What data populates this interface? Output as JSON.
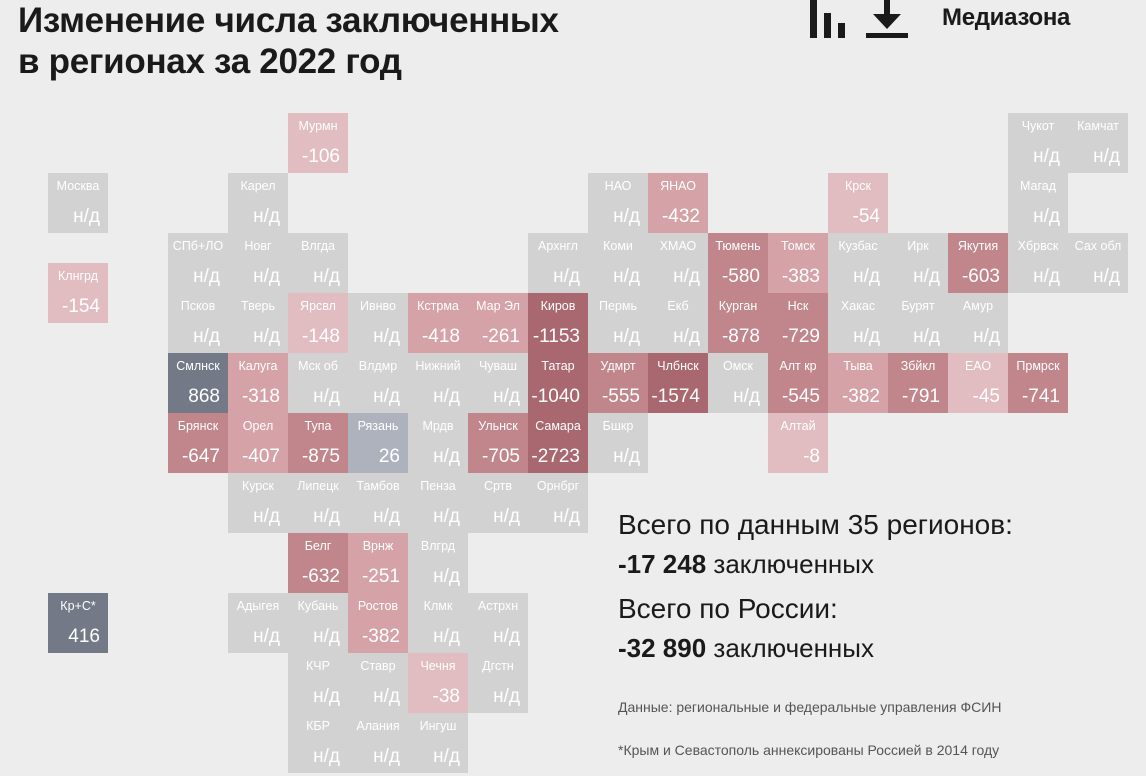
{
  "header": {
    "title_line1": "Изменение числа заключенных",
    "title_line2": "в регионах за 2022 год",
    "brand": "Медиазона"
  },
  "icons": {
    "chart": "bar-chart-icon",
    "download": "download-icon"
  },
  "colors": {
    "na": "#d2d2d2",
    "neg_light": "#e1bcc0",
    "neg_mid": "#d5a2a7",
    "neg_dark": "#c0868c",
    "neg_darkest": "#a9686f",
    "pos_light": "#aeb2bd",
    "pos_dark": "#737987"
  },
  "chart_data": {
    "type": "tile-map",
    "title": "Изменение числа заключенных в регионах за 2022 год",
    "columns": 18,
    "rows": 11,
    "tiles": [
      {
        "abbr": "Мурмн",
        "value": "-106",
        "col": 4,
        "row": 0
      },
      {
        "abbr": "Чукот",
        "value": "н/д",
        "col": 16,
        "row": 0
      },
      {
        "abbr": "Камчат",
        "value": "н/д",
        "col": 17,
        "row": 0
      },
      {
        "abbr": "Москва",
        "value": "н/д",
        "col": 0,
        "row": 1
      },
      {
        "abbr": "Карел",
        "value": "н/д",
        "col": 3,
        "row": 1
      },
      {
        "abbr": "НАО",
        "value": "н/д",
        "col": 9,
        "row": 1
      },
      {
        "abbr": "ЯНАО",
        "value": "-432",
        "col": 10,
        "row": 1
      },
      {
        "abbr": "Крск",
        "value": "-54",
        "col": 13,
        "row": 1
      },
      {
        "abbr": "Магад",
        "value": "н/д",
        "col": 16,
        "row": 1
      },
      {
        "abbr": "СПб+ЛО",
        "value": "н/д",
        "col": 2,
        "row": 2
      },
      {
        "abbr": "Новг",
        "value": "н/д",
        "col": 3,
        "row": 2
      },
      {
        "abbr": "Влгда",
        "value": "н/д",
        "col": 4,
        "row": 2
      },
      {
        "abbr": "Архнгл",
        "value": "н/д",
        "col": 8,
        "row": 2
      },
      {
        "abbr": "Коми",
        "value": "н/д",
        "col": 9,
        "row": 2
      },
      {
        "abbr": "ХМАО",
        "value": "н/д",
        "col": 10,
        "row": 2
      },
      {
        "abbr": "Тюмень",
        "value": "-580",
        "col": 11,
        "row": 2
      },
      {
        "abbr": "Томск",
        "value": "-383",
        "col": 12,
        "row": 2
      },
      {
        "abbr": "Кузбас",
        "value": "н/д",
        "col": 13,
        "row": 2
      },
      {
        "abbr": "Ирк",
        "value": "н/д",
        "col": 14,
        "row": 2
      },
      {
        "abbr": "Якутия",
        "value": "-603",
        "col": 15,
        "row": 2
      },
      {
        "abbr": "Хбрвск",
        "value": "н/д",
        "col": 16,
        "row": 2
      },
      {
        "abbr": "Сах обл",
        "value": "н/д",
        "col": 17,
        "row": 2
      },
      {
        "abbr": "Клнгрд",
        "value": "-154",
        "col": 0,
        "row": 2.5
      },
      {
        "abbr": "Псков",
        "value": "н/д",
        "col": 2,
        "row": 3
      },
      {
        "abbr": "Тверь",
        "value": "н/д",
        "col": 3,
        "row": 3
      },
      {
        "abbr": "Ярсвл",
        "value": "-148",
        "col": 4,
        "row": 3
      },
      {
        "abbr": "Ивнво",
        "value": "н/д",
        "col": 5,
        "row": 3
      },
      {
        "abbr": "Кстрма",
        "value": "-418",
        "col": 6,
        "row": 3
      },
      {
        "abbr": "Мар Эл",
        "value": "-261",
        "col": 7,
        "row": 3
      },
      {
        "abbr": "Киров",
        "value": "-1153",
        "col": 8,
        "row": 3
      },
      {
        "abbr": "Пермь",
        "value": "н/д",
        "col": 9,
        "row": 3
      },
      {
        "abbr": "Екб",
        "value": "н/д",
        "col": 10,
        "row": 3
      },
      {
        "abbr": "Курган",
        "value": "-878",
        "col": 11,
        "row": 3
      },
      {
        "abbr": "Нск",
        "value": "-729",
        "col": 12,
        "row": 3
      },
      {
        "abbr": "Хакас",
        "value": "н/д",
        "col": 13,
        "row": 3
      },
      {
        "abbr": "Бурят",
        "value": "н/д",
        "col": 14,
        "row": 3
      },
      {
        "abbr": "Амур",
        "value": "н/д",
        "col": 15,
        "row": 3
      },
      {
        "abbr": "Смлнск",
        "value": "868",
        "col": 2,
        "row": 4
      },
      {
        "abbr": "Калуга",
        "value": "-318",
        "col": 3,
        "row": 4
      },
      {
        "abbr": "Мск об",
        "value": "н/д",
        "col": 4,
        "row": 4
      },
      {
        "abbr": "Влдмр",
        "value": "н/д",
        "col": 5,
        "row": 4
      },
      {
        "abbr": "Нижний",
        "value": "н/д",
        "col": 6,
        "row": 4
      },
      {
        "abbr": "Чуваш",
        "value": "н/д",
        "col": 7,
        "row": 4
      },
      {
        "abbr": "Татар",
        "value": "-1040",
        "col": 8,
        "row": 4
      },
      {
        "abbr": "Удмрт",
        "value": "-555",
        "col": 9,
        "row": 4
      },
      {
        "abbr": "Члбнск",
        "value": "-1574",
        "col": 10,
        "row": 4
      },
      {
        "abbr": "Омск",
        "value": "н/д",
        "col": 11,
        "row": 4
      },
      {
        "abbr": "Алт кр",
        "value": "-545",
        "col": 12,
        "row": 4
      },
      {
        "abbr": "Тыва",
        "value": "-382",
        "col": 13,
        "row": 4
      },
      {
        "abbr": "Збйкл",
        "value": "-791",
        "col": 14,
        "row": 4
      },
      {
        "abbr": "ЕАО",
        "value": "-45",
        "col": 15,
        "row": 4
      },
      {
        "abbr": "Прмрск",
        "value": "-741",
        "col": 16,
        "row": 4
      },
      {
        "abbr": "Брянск",
        "value": "-647",
        "col": 2,
        "row": 5
      },
      {
        "abbr": "Орел",
        "value": "-407",
        "col": 3,
        "row": 5
      },
      {
        "abbr": "Тупа",
        "value": "-875",
        "col": 4,
        "row": 5
      },
      {
        "abbr": "Рязань",
        "value": "26",
        "col": 5,
        "row": 5
      },
      {
        "abbr": "Мрдв",
        "value": "н/д",
        "col": 6,
        "row": 5
      },
      {
        "abbr": "Ульнск",
        "value": "-705",
        "col": 7,
        "row": 5
      },
      {
        "abbr": "Самара",
        "value": "-2723",
        "col": 8,
        "row": 5
      },
      {
        "abbr": "Бшкр",
        "value": "н/д",
        "col": 9,
        "row": 5
      },
      {
        "abbr": "Алтай",
        "value": "-8",
        "col": 12,
        "row": 5
      },
      {
        "abbr": "Курск",
        "value": "н/д",
        "col": 3,
        "row": 6
      },
      {
        "abbr": "Липецк",
        "value": "н/д",
        "col": 4,
        "row": 6
      },
      {
        "abbr": "Тамбов",
        "value": "н/д",
        "col": 5,
        "row": 6
      },
      {
        "abbr": "Пенза",
        "value": "н/д",
        "col": 6,
        "row": 6
      },
      {
        "abbr": "Сртв",
        "value": "н/д",
        "col": 7,
        "row": 6
      },
      {
        "abbr": "Орнбрг",
        "value": "н/д",
        "col": 8,
        "row": 6
      },
      {
        "abbr": "Белг",
        "value": "-632",
        "col": 4,
        "row": 7
      },
      {
        "abbr": "Врнж",
        "value": "-251",
        "col": 5,
        "row": 7
      },
      {
        "abbr": "Влгрд",
        "value": "н/д",
        "col": 6,
        "row": 7
      },
      {
        "abbr": "Кр+С*",
        "value": "416",
        "col": 0,
        "row": 8
      },
      {
        "abbr": "Адыгея",
        "value": "н/д",
        "col": 3,
        "row": 8
      },
      {
        "abbr": "Кубань",
        "value": "н/д",
        "col": 4,
        "row": 8
      },
      {
        "abbr": "Ростов",
        "value": "-382",
        "col": 5,
        "row": 8
      },
      {
        "abbr": "Клмк",
        "value": "н/д",
        "col": 6,
        "row": 8
      },
      {
        "abbr": "Астрхн",
        "value": "н/д",
        "col": 7,
        "row": 8
      },
      {
        "abbr": "КЧР",
        "value": "н/д",
        "col": 4,
        "row": 9
      },
      {
        "abbr": "Ставр",
        "value": "н/д",
        "col": 5,
        "row": 9
      },
      {
        "abbr": "Чечня",
        "value": "-38",
        "col": 6,
        "row": 9
      },
      {
        "abbr": "Дгстн",
        "value": "н/д",
        "col": 7,
        "row": 9
      },
      {
        "abbr": "КБР",
        "value": "н/д",
        "col": 4,
        "row": 10
      },
      {
        "abbr": "Алания",
        "value": "н/д",
        "col": 5,
        "row": 10
      },
      {
        "abbr": "Ингуш",
        "value": "н/д",
        "col": 6,
        "row": 10
      }
    ]
  },
  "summary": {
    "regions_label": "Всего по данным 35 регионов:",
    "regions_total": "-17 248",
    "regions_unit": "заключенных",
    "russia_label": "Всего по России:",
    "russia_total": "-32 890",
    "russia_unit": "заключенных"
  },
  "notes": {
    "source": "Данные: региональные и федеральные управления ФСИН",
    "footnote": "*Крым и Севастополь аннексированы Россией в 2014 году"
  }
}
